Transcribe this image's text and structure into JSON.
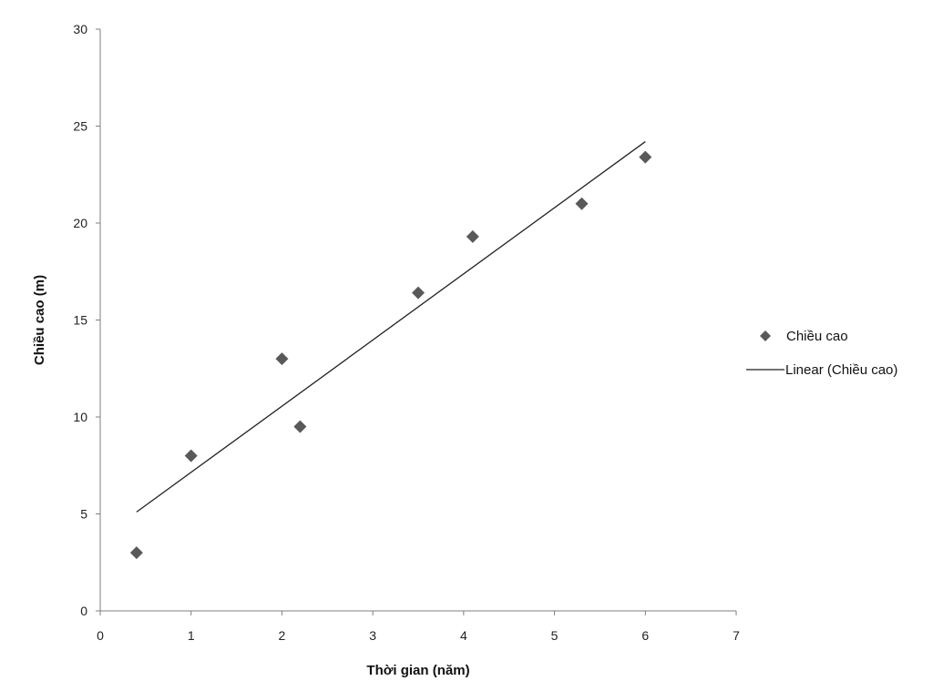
{
  "chart_data": {
    "type": "scatter",
    "title": "",
    "xlabel": "Thời gian (năm)",
    "ylabel": "Chiều cao (m)",
    "xlim": [
      0,
      7
    ],
    "ylim": [
      0,
      30
    ],
    "xticks": [
      0,
      1,
      2,
      3,
      4,
      5,
      6,
      7
    ],
    "yticks": [
      0,
      5,
      10,
      15,
      20,
      25,
      30
    ],
    "grid": false,
    "legend_position": "right",
    "series": [
      {
        "name": "Chiều cao",
        "type": "scatter",
        "marker": "diamond",
        "color": "#595959",
        "x": [
          0.4,
          1,
          2,
          2.2,
          3.5,
          4.1,
          5.3,
          6
        ],
        "y": [
          3,
          8,
          13,
          9.5,
          16.4,
          19.3,
          21,
          23.4
        ]
      },
      {
        "name": "Linear (Chiều cao)",
        "type": "line",
        "color": "#222222",
        "x": [
          0.4,
          6
        ],
        "y": [
          5.1,
          24.2
        ]
      }
    ]
  }
}
